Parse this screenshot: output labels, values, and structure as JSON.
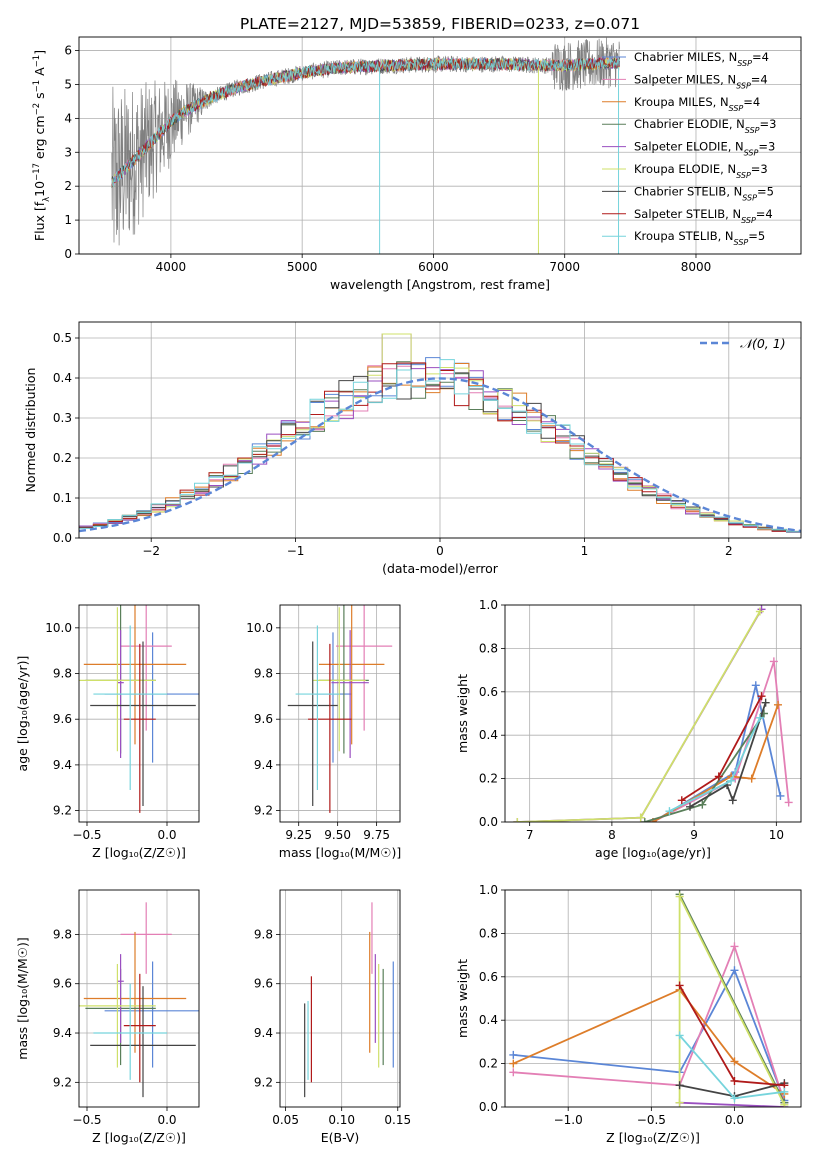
{
  "title": "PLATE=2127, MJD=53859, FIBERID=0233, z=0.071",
  "colors": {
    "blue": "#5b86d6",
    "pink": "#e37fb5",
    "orange": "#dd7d2a",
    "darkgreen": "#5a7f5a",
    "purple": "#9a4fc0",
    "yellow": "#cfe06a",
    "darkgray": "#444444",
    "red": "#b01a1a",
    "cyan": "#76d4dc",
    "gray": "#808080",
    "dashed": "#5b86d6"
  },
  "series_names": [
    {
      "main": "Chabrier MILES, N",
      "sub": "SSP",
      "tail": "=4"
    },
    {
      "main": "Salpeter MILES, N",
      "sub": "SSP",
      "tail": "=4"
    },
    {
      "main": "Kroupa MILES, N",
      "sub": "SSP",
      "tail": "=4"
    },
    {
      "main": "Chabrier ELODIE, N",
      "sub": "SSP",
      "tail": "=3"
    },
    {
      "main": "Salpeter ELODIE, N",
      "sub": "SSP",
      "tail": "=3"
    },
    {
      "main": "Kroupa ELODIE, N",
      "sub": "SSP",
      "tail": "=3"
    },
    {
      "main": "Chabrier STELIB, N",
      "sub": "SSP",
      "tail": "=5"
    },
    {
      "main": "Salpeter STELIB, N",
      "sub": "SSP",
      "tail": "=4"
    },
    {
      "main": "Kroupa STELIB, N",
      "sub": "SSP",
      "tail": "=5"
    }
  ],
  "chart_data": [
    {
      "id": "spectrum",
      "type": "line",
      "xlabel": "wavelength [Angstrom, rest frame]",
      "ylabel_parts": [
        "Flux [f",
        "λ",
        "10",
        "−17",
        " erg cm",
        "−2",
        " s",
        "−1",
        " A",
        "−1",
        "]"
      ],
      "xlim": [
        3300,
        8800
      ],
      "ylim": [
        0,
        6.4
      ],
      "xticks": [
        4000,
        5000,
        6000,
        7000,
        8000
      ],
      "yticks": [
        0,
        1,
        2,
        3,
        4,
        5,
        6
      ],
      "data_range": [
        3550,
        7420
      ],
      "continuum": {
        "x": [
          3550,
          3600,
          3700,
          3800,
          3900,
          4000,
          4100,
          4200,
          4300,
          4500,
          4700,
          5000,
          5300,
          5600,
          6000,
          6500,
          7000,
          7400
        ],
        "y": [
          2.1,
          2.3,
          2.7,
          3.1,
          3.5,
          3.9,
          4.2,
          4.4,
          4.6,
          4.9,
          5.1,
          5.35,
          5.5,
          5.55,
          5.6,
          5.6,
          5.55,
          5.65
        ]
      }
    },
    {
      "id": "residuals",
      "type": "step",
      "xlabel": "(data-model)/error",
      "ylabel": "Normed distribution",
      "xlim": [
        -2.5,
        2.5
      ],
      "ylim": [
        0,
        0.54
      ],
      "xticks": [
        -2,
        -1,
        0,
        1,
        2
      ],
      "yticks": [
        0.0,
        0.1,
        0.2,
        0.3,
        0.4,
        0.5
      ],
      "legend": "𝒩(0, 1)",
      "bin_width": 0.1
    },
    {
      "id": "age_vs_Z",
      "type": "errorbar",
      "xlabel": "Z [log₁₀(Z/Z☉)]",
      "ylabel": "age  [log₁₀(age/yr)]",
      "xlim": [
        -0.55,
        0.2
      ],
      "ylim": [
        9.15,
        10.1
      ],
      "xticks": [
        -0.5,
        0.0
      ],
      "yticks": [
        9.2,
        9.4,
        9.6,
        9.8,
        10.0
      ],
      "points": [
        {
          "x": -0.09,
          "xerr": 0.3,
          "y": 9.71,
          "yerr": [
            0.3,
            0.27
          ]
        },
        {
          "x": -0.13,
          "xerr": 0.16,
          "y": 9.92,
          "yerr": [
            0.37,
            0.18
          ]
        },
        {
          "x": -0.2,
          "xerr": 0.32,
          "y": 9.84,
          "yerr": [
            0.35,
            0.26
          ]
        },
        {
          "x": -0.29,
          "xerr": 0.22,
          "y": 9.77,
          "yerr": [
            0.32,
            0.34
          ]
        },
        {
          "x": -0.29,
          "xerr": 0.02,
          "y": 9.76,
          "yerr": [
            0.33,
            0.23
          ]
        },
        {
          "x": -0.31,
          "xerr": 0.24,
          "y": 9.77,
          "yerr": [
            0.31,
            0.32
          ]
        },
        {
          "x": -0.15,
          "xerr": 0.33,
          "y": 9.66,
          "yerr": [
            0.44,
            0.28
          ]
        },
        {
          "x": -0.17,
          "xerr": 0.1,
          "y": 9.6,
          "yerr": [
            0.41,
            0.33
          ]
        },
        {
          "x": -0.23,
          "xerr": 0.23,
          "y": 9.71,
          "yerr": [
            0.42,
            0.3
          ]
        }
      ]
    },
    {
      "id": "age_vs_mass",
      "type": "errorbar",
      "xlabel": "mass [log₁₀(M/M☉)]",
      "xlim": [
        9.13,
        9.9
      ],
      "ylim": [
        9.15,
        10.1
      ],
      "xticks": [
        9.25,
        9.5,
        9.75
      ],
      "yticks": [
        9.2,
        9.4,
        9.6,
        9.8,
        10.0
      ],
      "points": [
        {
          "x": 9.47,
          "xerr": 0.12,
          "y": 9.71,
          "yerr": [
            0.3,
            0.27
          ]
        },
        {
          "x": 9.67,
          "xerr": 0.18,
          "y": 9.92,
          "yerr": [
            0.37,
            0.18
          ]
        },
        {
          "x": 9.59,
          "xerr": 0.21,
          "y": 9.84,
          "yerr": [
            0.35,
            0.26
          ]
        },
        {
          "x": 9.54,
          "xerr": 0.16,
          "y": 9.77,
          "yerr": [
            0.32,
            0.34
          ]
        },
        {
          "x": 9.58,
          "xerr": 0.12,
          "y": 9.76,
          "yerr": [
            0.33,
            0.23
          ]
        },
        {
          "x": 9.51,
          "xerr": 0.17,
          "y": 9.77,
          "yerr": [
            0.31,
            0.32
          ]
        },
        {
          "x": 9.34,
          "xerr": 0.16,
          "y": 9.66,
          "yerr": [
            0.44,
            0.28
          ]
        },
        {
          "x": 9.45,
          "xerr": 0.14,
          "y": 9.6,
          "yerr": [
            0.41,
            0.33
          ]
        },
        {
          "x": 9.37,
          "xerr": 0.14,
          "y": 9.71,
          "yerr": [
            0.42,
            0.3
          ]
        }
      ]
    },
    {
      "id": "weight_vs_age",
      "type": "line",
      "xlabel": "age  [log₁₀(age/yr)]",
      "ylabel": "mass weight",
      "xlim": [
        6.7,
        10.3
      ],
      "ylim": [
        0,
        1.0
      ],
      "xticks": [
        7,
        8,
        9,
        10
      ],
      "yticks": [
        0.0,
        0.2,
        0.4,
        0.6,
        0.8,
        1.0
      ],
      "series": [
        {
          "x": [
            8.5,
            9.5,
            9.75,
            10.05
          ],
          "y": [
            0.0,
            0.23,
            0.63,
            0.12
          ]
        },
        {
          "x": [
            8.5,
            9.5,
            9.97,
            10.15
          ],
          "y": [
            0.0,
            0.2,
            0.74,
            0.09
          ]
        },
        {
          "x": [
            8.5,
            9.45,
            9.7,
            10.02
          ],
          "y": [
            0.0,
            0.21,
            0.2,
            0.54
          ]
        },
        {
          "x": [
            8.4,
            9.1,
            9.85
          ],
          "y": [
            0.0,
            0.08,
            0.5
          ]
        },
        {
          "x": [
            6.85,
            8.35,
            9.82
          ],
          "y": [
            0.0,
            0.02,
            0.98
          ]
        },
        {
          "x": [
            6.85,
            8.35,
            9.8
          ],
          "y": [
            0.0,
            0.02,
            0.97
          ]
        },
        {
          "x": [
            8.95,
            9.4,
            9.47,
            9.87
          ],
          "y": [
            0.07,
            0.17,
            0.1,
            0.55
          ]
        },
        {
          "x": [
            8.85,
            9.3,
            9.82
          ],
          "y": [
            0.1,
            0.21,
            0.58
          ]
        },
        {
          "x": [
            8.7,
            9.45,
            9.8
          ],
          "y": [
            0.05,
            0.19,
            0.48
          ]
        }
      ]
    },
    {
      "id": "mass_vs_Z",
      "type": "errorbar",
      "xlabel": "Z [log₁₀(Z/Z☉)]",
      "ylabel": "mass [log₁₀(M/M☉)]",
      "xlim": [
        -0.55,
        0.2
      ],
      "ylim": [
        9.1,
        9.98
      ],
      "xticks": [
        -0.5,
        0.0
      ],
      "yticks": [
        9.2,
        9.4,
        9.6,
        9.8
      ],
      "points": [
        {
          "x": -0.09,
          "xerr": 0.3,
          "y": 9.49,
          "yerr": [
            0.23,
            0.2
          ]
        },
        {
          "x": -0.13,
          "xerr": 0.16,
          "y": 9.8,
          "yerr": [
            0.16,
            0.13
          ]
        },
        {
          "x": -0.2,
          "xerr": 0.32,
          "y": 9.54,
          "yerr": [
            0.22,
            0.27
          ]
        },
        {
          "x": -0.29,
          "xerr": 0.22,
          "y": 9.5,
          "yerr": [
            0.23,
            0.16
          ]
        },
        {
          "x": -0.29,
          "xerr": 0.02,
          "y": 9.61,
          "yerr": [
            0.25,
            0.11
          ]
        },
        {
          "x": -0.31,
          "xerr": 0.24,
          "y": 9.51,
          "yerr": [
            0.25,
            0.17
          ]
        },
        {
          "x": -0.15,
          "xerr": 0.33,
          "y": 9.35,
          "yerr": [
            0.21,
            0.24
          ]
        },
        {
          "x": -0.17,
          "xerr": 0.1,
          "y": 9.43,
          "yerr": [
            0.23,
            0.21
          ]
        },
        {
          "x": -0.23,
          "xerr": 0.23,
          "y": 9.4,
          "yerr": [
            0.19,
            0.2
          ]
        }
      ]
    },
    {
      "id": "mass_vs_EBV",
      "type": "errorbar",
      "xlabel": "E(B-V)",
      "xlim": [
        0.045,
        0.152
      ],
      "ylim": [
        9.1,
        9.98
      ],
      "xticks": [
        0.05,
        0.1,
        0.15
      ],
      "yticks": [
        9.2,
        9.4,
        9.6,
        9.8
      ],
      "points": [
        {
          "x": 0.146,
          "xerr": 0,
          "y": 9.49,
          "yerr": [
            0.23,
            0.2
          ]
        },
        {
          "x": 0.127,
          "xerr": 0,
          "y": 9.8,
          "yerr": [
            0.16,
            0.13
          ]
        },
        {
          "x": 0.125,
          "xerr": 0,
          "y": 9.54,
          "yerr": [
            0.22,
            0.27
          ]
        },
        {
          "x": 0.137,
          "xerr": 0,
          "y": 9.5,
          "yerr": [
            0.23,
            0.16
          ]
        },
        {
          "x": 0.13,
          "xerr": 0,
          "y": 9.61,
          "yerr": [
            0.25,
            0.11
          ]
        },
        {
          "x": 0.133,
          "xerr": 0,
          "y": 9.51,
          "yerr": [
            0.25,
            0.17
          ]
        },
        {
          "x": 0.067,
          "xerr": 0,
          "y": 9.35,
          "yerr": [
            0.21,
            0.17
          ]
        },
        {
          "x": 0.073,
          "xerr": 0,
          "y": 9.43,
          "yerr": [
            0.23,
            0.2
          ]
        },
        {
          "x": 0.07,
          "xerr": 0,
          "y": 9.4,
          "yerr": [
            0.19,
            0.13
          ]
        }
      ]
    },
    {
      "id": "weight_vs_Z",
      "type": "line",
      "xlabel": "Z [log₁₀(Z/Z☉)]",
      "ylabel": "mass weight",
      "xlim": [
        -1.38,
        0.4
      ],
      "ylim": [
        0,
        1.0
      ],
      "xticks": [
        -1.0,
        -0.5,
        0.0
      ],
      "yticks": [
        0.0,
        0.2,
        0.4,
        0.6,
        0.8,
        1.0
      ],
      "series": [
        {
          "x": [
            -1.33,
            -0.33,
            0.0,
            0.3
          ],
          "y": [
            0.24,
            0.16,
            0.63,
            0.03
          ]
        },
        {
          "x": [
            -1.33,
            -0.33,
            0.0,
            0.3
          ],
          "y": [
            0.16,
            0.1,
            0.74,
            0.02
          ]
        },
        {
          "x": [
            -1.33,
            -0.33,
            0.0,
            0.3
          ],
          "y": [
            0.2,
            0.54,
            0.21,
            0.06
          ]
        },
        {
          "x": [
            -0.33,
            0.3
          ],
          "y": [
            0.98,
            0.02
          ]
        },
        {
          "x": [
            -0.33,
            0.3
          ],
          "y": [
            0.02,
            0.0
          ]
        },
        {
          "x": [
            -0.33,
            -0.33,
            0.3
          ],
          "y": [
            0.02,
            0.97,
            0.01
          ]
        },
        {
          "x": [
            -0.33,
            0.0,
            0.3
          ],
          "y": [
            0.1,
            0.05,
            0.11
          ]
        },
        {
          "x": [
            -0.33,
            0.0,
            0.3
          ],
          "y": [
            0.56,
            0.12,
            0.1
          ]
        },
        {
          "x": [
            -0.33,
            0.0,
            0.3
          ],
          "y": [
            0.33,
            0.04,
            0.07
          ]
        }
      ]
    }
  ]
}
